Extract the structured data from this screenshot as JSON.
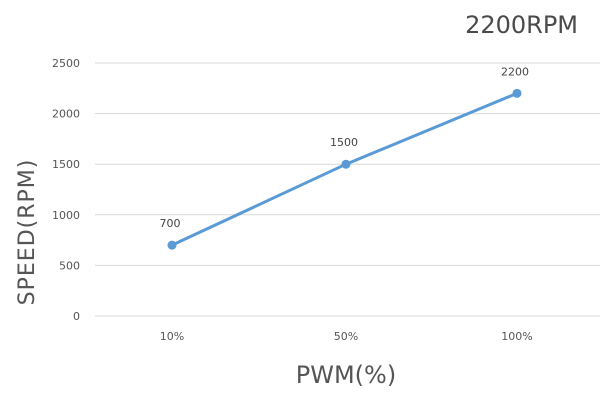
{
  "colors": {
    "series": "#5b9bd5",
    "grid": "#d9d9d9",
    "text": "#555555"
  },
  "chart_data": {
    "type": "line",
    "title": "2200RPM",
    "xlabel": "PWM(%)",
    "ylabel": "SPEED(RPM)",
    "categories": [
      "10%",
      "50%",
      "100%"
    ],
    "series": [
      {
        "values": [
          700,
          1500,
          2200
        ],
        "data_labels": [
          "700",
          "1500",
          "2200"
        ]
      }
    ],
    "ylim": [
      0,
      2500
    ],
    "yticks": [
      "0",
      "500",
      "1000",
      "1500",
      "2000",
      "2500"
    ],
    "grid": true,
    "legend": "none"
  }
}
